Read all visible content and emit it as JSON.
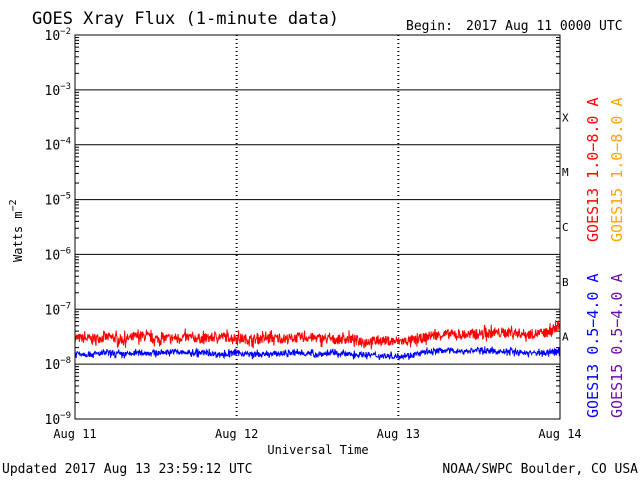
{
  "chart_data": {
    "type": "line",
    "title": "GOES Xray Flux (1-minute data)",
    "begin_label": "Begin:",
    "begin_date": "2017 Aug 11 0000 UTC",
    "xlabel": "Universal Time",
    "ylabel_main": "Watts m",
    "ylabel_sup": "−2",
    "x_tick_labels": [
      "Aug 11",
      "Aug 12",
      "Aug 13",
      "Aug 14"
    ],
    "x_range_days": [
      0,
      3
    ],
    "y_scale": "log",
    "y_tick_labels": [
      {
        "base": "10",
        "exp": "−2",
        "value": 0.01
      },
      {
        "base": "10",
        "exp": "−3",
        "value": 0.001
      },
      {
        "base": "10",
        "exp": "−4",
        "value": 0.0001
      },
      {
        "base": "10",
        "exp": "−5",
        "value": 1e-05
      },
      {
        "base": "10",
        "exp": "−6",
        "value": 1e-06
      },
      {
        "base": "10",
        "exp": "−7",
        "value": 1e-07
      },
      {
        "base": "10",
        "exp": "−8",
        "value": 1e-08
      },
      {
        "base": "10",
        "exp": "−9",
        "value": 1e-09
      }
    ],
    "ylim": [
      1e-09,
      0.01
    ],
    "flare_classes": [
      {
        "label": "X",
        "value": 0.000316
      },
      {
        "label": "M",
        "value": 3.16e-05
      },
      {
        "label": "C",
        "value": 3.16e-06
      },
      {
        "label": "B",
        "value": 3.16e-07
      },
      {
        "label": "A",
        "value": 3.16e-08
      }
    ],
    "grid": true,
    "series": [
      {
        "name": "GOES13 1.0−8.0 A",
        "color": "#ff0000",
        "x_days": [
          0,
          0.1,
          0.2,
          0.3,
          0.4,
          0.5,
          0.6,
          0.7,
          0.8,
          0.9,
          1.0,
          1.1,
          1.2,
          1.3,
          1.4,
          1.5,
          1.6,
          1.7,
          1.8,
          1.9,
          2.0,
          2.1,
          2.2,
          2.3,
          2.4,
          2.5,
          2.6,
          2.7,
          2.8,
          2.9,
          2.95,
          3.0
        ],
        "values": [
          3e-08,
          2.9e-08,
          3.1e-08,
          2.8e-08,
          3.3e-08,
          2.9e-08,
          3e-08,
          3.1e-08,
          2.9e-08,
          3.2e-08,
          3e-08,
          2.8e-08,
          3e-08,
          2.9e-08,
          3.1e-08,
          3e-08,
          2.8e-08,
          2.9e-08,
          2.6e-08,
          2.7e-08,
          2.6e-08,
          2.7e-08,
          3.3e-08,
          3.5e-08,
          3.4e-08,
          3.6e-08,
          3.7e-08,
          3.8e-08,
          3.5e-08,
          3.7e-08,
          3.9e-08,
          5.5e-08
        ]
      },
      {
        "name": "GOES15 1.0−8.0 A",
        "color": "#ffa500",
        "x_days": [],
        "values": []
      },
      {
        "name": "GOES13 0.5−4.0 A",
        "color": "#0000ff",
        "x_days": [
          0,
          0.1,
          0.2,
          0.3,
          0.4,
          0.5,
          0.6,
          0.7,
          0.8,
          0.9,
          1.0,
          1.1,
          1.2,
          1.3,
          1.4,
          1.5,
          1.6,
          1.7,
          1.8,
          1.9,
          2.0,
          2.1,
          2.2,
          2.3,
          2.4,
          2.5,
          2.6,
          2.7,
          2.8,
          2.9,
          2.95,
          3.0
        ],
        "values": [
          1.6e-08,
          1.5e-08,
          1.6e-08,
          1.5e-08,
          1.6e-08,
          1.6e-08,
          1.7e-08,
          1.6e-08,
          1.6e-08,
          1.5e-08,
          1.6e-08,
          1.5e-08,
          1.5e-08,
          1.6e-08,
          1.6e-08,
          1.5e-08,
          1.6e-08,
          1.5e-08,
          1.5e-08,
          1.4e-08,
          1.4e-08,
          1.5e-08,
          1.7e-08,
          1.8e-08,
          1.7e-08,
          1.8e-08,
          1.7e-08,
          1.7e-08,
          1.6e-08,
          1.6e-08,
          1.7e-08,
          1.7e-08
        ]
      },
      {
        "name": "GOES15 0.5−4.0 A",
        "color": "#6a0dad",
        "x_days": [],
        "values": []
      }
    ]
  },
  "footer": {
    "updated": "Updated 2017 Aug 13 23:59:12 UTC",
    "source": "NOAA/SWPC Boulder, CO USA"
  }
}
